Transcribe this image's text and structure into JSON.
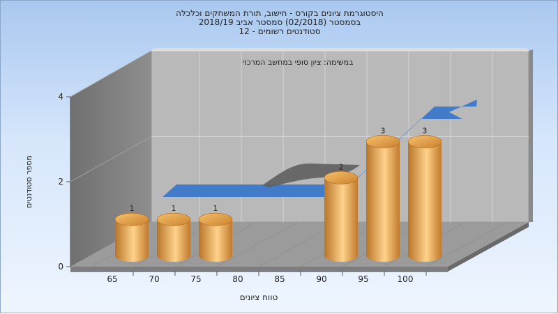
{
  "header": {
    "title_line1": "היסטוגרמת ציונים בקורס - חישוב, תורת המשחקים וכלכלה",
    "title_line2": "בסמסטר (02/2018) סמסטר אביב 2018/19",
    "title_line3": "סטודנטים רשומים - 12"
  },
  "chart_data": {
    "type": "bar",
    "subtitle": "במשימה: ציון סופי במחשב המרכזי",
    "xlabel": "טווח ציונים",
    "ylabel": "מספר סטודנטים",
    "categories": [
      "65",
      "70",
      "75",
      "80",
      "85",
      "90",
      "95",
      "100"
    ],
    "values": [
      1,
      1,
      1,
      0,
      0,
      2,
      3,
      3
    ],
    "ylim": [
      0,
      4
    ],
    "yticks": [
      0,
      2,
      4
    ],
    "data_labels": [
      "1",
      "1",
      "1",
      "",
      "",
      "2",
      "3",
      "3"
    ],
    "grid": true,
    "bar_color": "#e8a94c",
    "ribbon_color": "#3b78c8",
    "wall_color": "#b8b8b8"
  }
}
